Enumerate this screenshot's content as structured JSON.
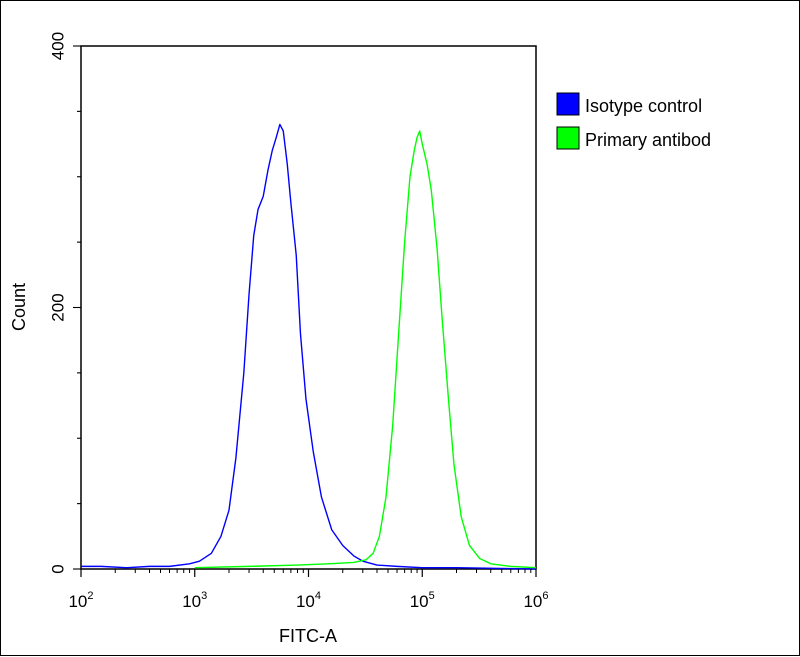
{
  "chart_data": {
    "type": "histogram",
    "xlabel": "FITC-A",
    "ylabel": "Count",
    "x_scale": "log",
    "xlim": [
      100,
      1000000
    ],
    "ylim": [
      0,
      400
    ],
    "grid": false,
    "legend_position": "right",
    "x_ticks": [
      {
        "base": "10",
        "exp": "2",
        "value": 100
      },
      {
        "base": "10",
        "exp": "3",
        "value": 1000
      },
      {
        "base": "10",
        "exp": "4",
        "value": 10000
      },
      {
        "base": "10",
        "exp": "5",
        "value": 100000
      },
      {
        "base": "10",
        "exp": "6",
        "value": 1000000
      }
    ],
    "y_ticks": [
      {
        "label": "0",
        "value": 0
      },
      {
        "label": "200",
        "value": 200
      },
      {
        "label": "400",
        "value": 400
      }
    ],
    "series": [
      {
        "name": "Isotype control",
        "color": "#0000ff",
        "points": [
          [
            100,
            2
          ],
          [
            150,
            2
          ],
          [
            250,
            1
          ],
          [
            400,
            2
          ],
          [
            600,
            2
          ],
          [
            900,
            4
          ],
          [
            1100,
            6
          ],
          [
            1400,
            12
          ],
          [
            1700,
            25
          ],
          [
            2000,
            45
          ],
          [
            2300,
            85
          ],
          [
            2700,
            150
          ],
          [
            3000,
            210
          ],
          [
            3300,
            255
          ],
          [
            3600,
            275
          ],
          [
            4000,
            285
          ],
          [
            4400,
            305
          ],
          [
            4800,
            320
          ],
          [
            5200,
            330
          ],
          [
            5600,
            340
          ],
          [
            6000,
            335
          ],
          [
            6500,
            310
          ],
          [
            7000,
            280
          ],
          [
            7800,
            240
          ],
          [
            8500,
            180
          ],
          [
            9500,
            130
          ],
          [
            11000,
            90
          ],
          [
            13000,
            55
          ],
          [
            16000,
            30
          ],
          [
            20000,
            18
          ],
          [
            25000,
            10
          ],
          [
            30000,
            6
          ],
          [
            40000,
            3
          ],
          [
            60000,
            2
          ],
          [
            100000,
            1
          ],
          [
            200000,
            1
          ],
          [
            1000000,
            0
          ]
        ]
      },
      {
        "name": "Primary antibod",
        "color": "#00ff00",
        "points": [
          [
            1000,
            1
          ],
          [
            3000,
            2
          ],
          [
            8000,
            3
          ],
          [
            15000,
            4
          ],
          [
            25000,
            5
          ],
          [
            32000,
            7
          ],
          [
            37000,
            12
          ],
          [
            42000,
            25
          ],
          [
            48000,
            55
          ],
          [
            55000,
            110
          ],
          [
            62000,
            180
          ],
          [
            70000,
            250
          ],
          [
            78000,
            300
          ],
          [
            85000,
            320
          ],
          [
            90000,
            330
          ],
          [
            95000,
            335
          ],
          [
            100000,
            325
          ],
          [
            110000,
            310
          ],
          [
            120000,
            290
          ],
          [
            135000,
            245
          ],
          [
            150000,
            190
          ],
          [
            170000,
            130
          ],
          [
            190000,
            80
          ],
          [
            220000,
            40
          ],
          [
            260000,
            18
          ],
          [
            320000,
            8
          ],
          [
            400000,
            4
          ],
          [
            600000,
            2
          ],
          [
            1000000,
            1
          ]
        ]
      }
    ]
  }
}
